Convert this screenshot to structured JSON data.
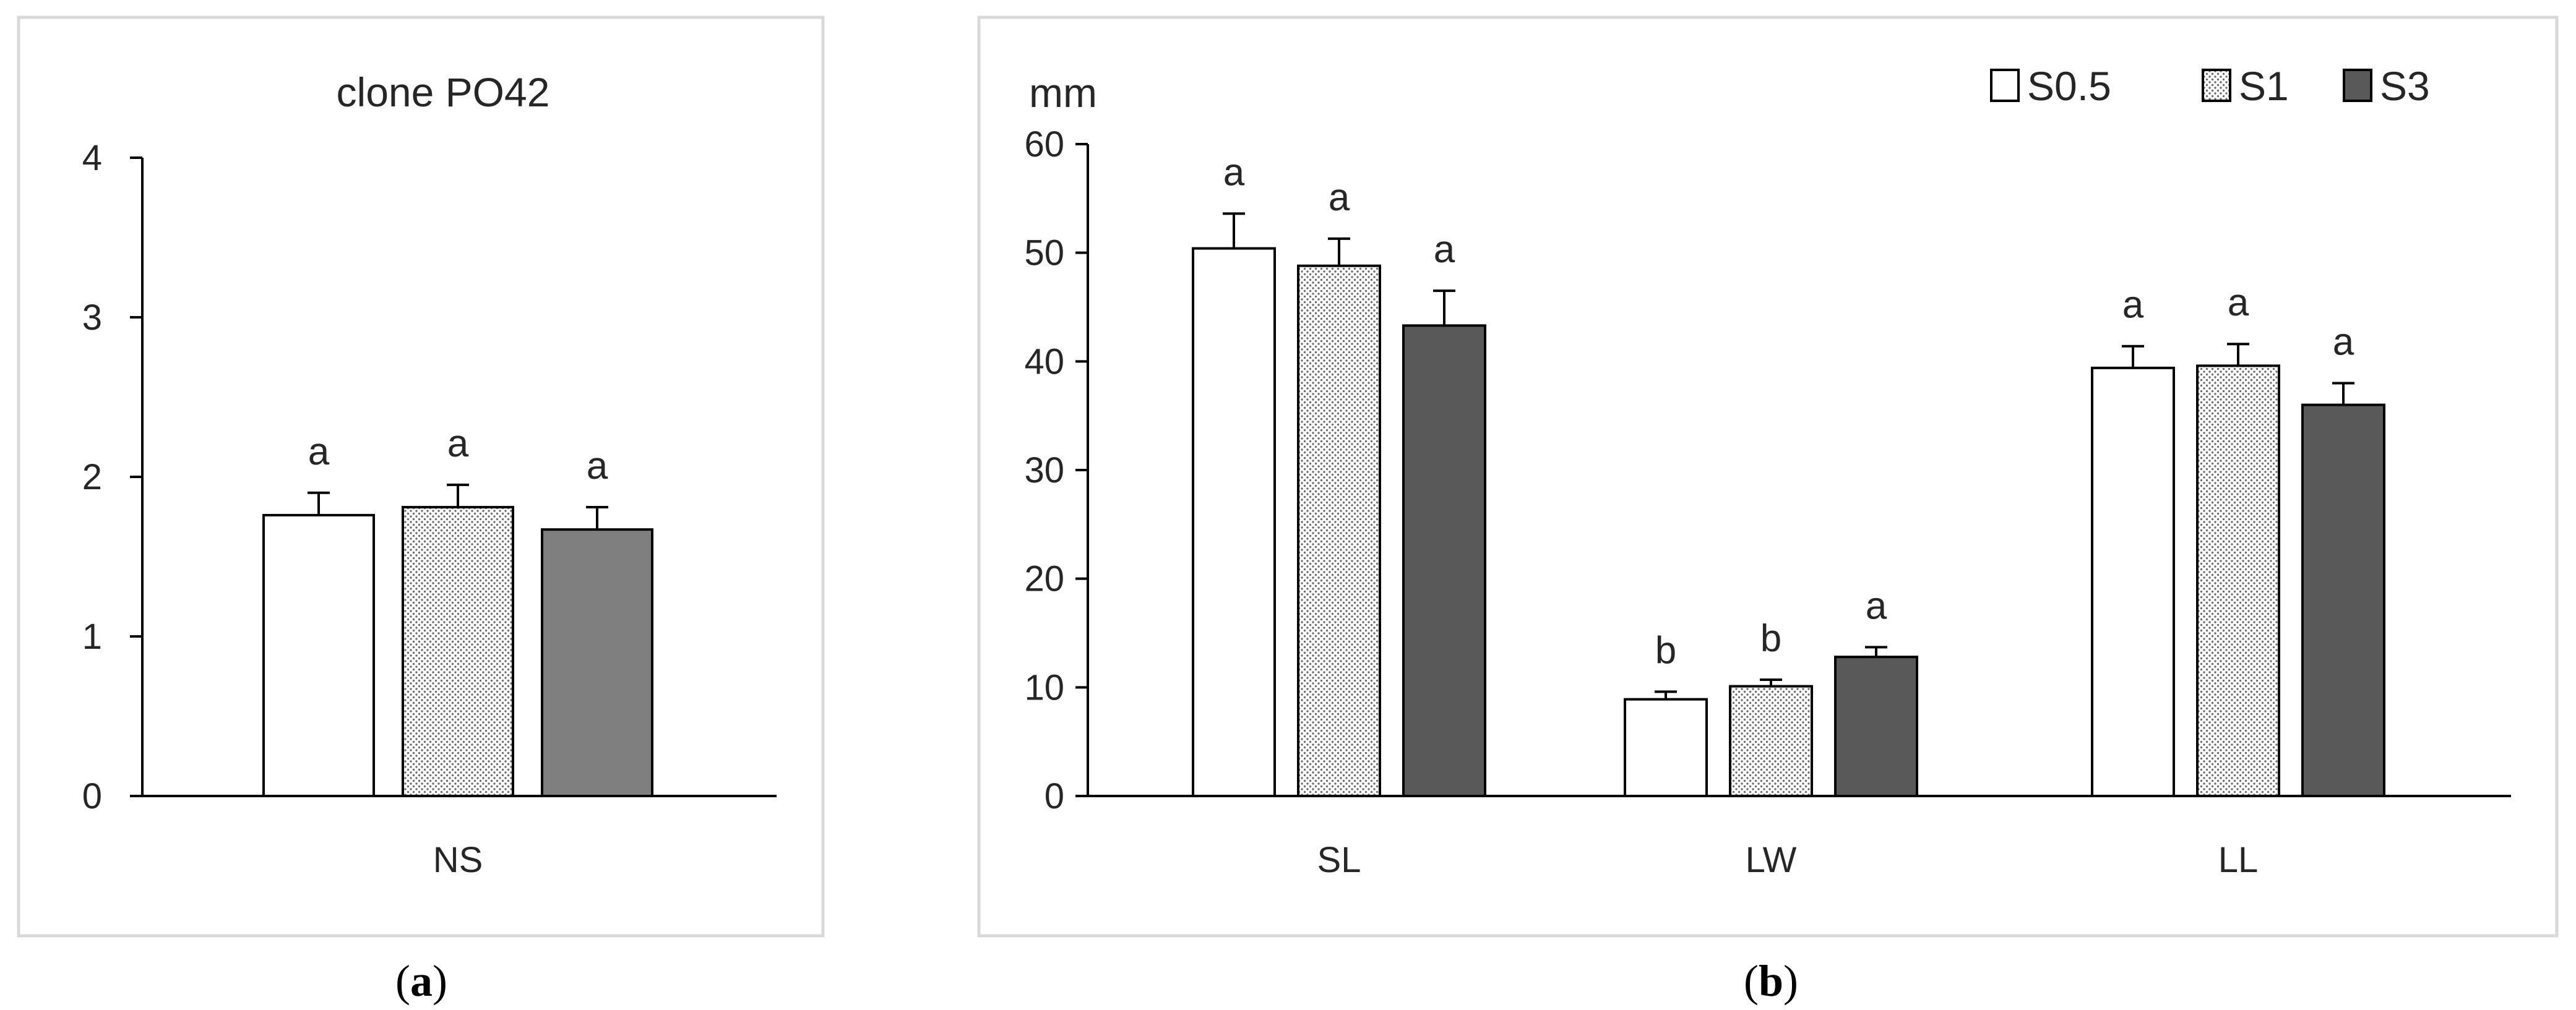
{
  "chart_data": [
    {
      "type": "bar",
      "panel_label": "a",
      "title": "clone PO42",
      "xlabel": "",
      "ylabel": "",
      "ylim": [
        0,
        4
      ],
      "yticks": [
        "0",
        "1",
        "2",
        "3",
        "4"
      ],
      "categories": [
        "NS"
      ],
      "series": [
        {
          "name": "S0.5",
          "values": [
            1.76
          ],
          "errors": [
            0.14
          ],
          "letters": [
            "a"
          ],
          "fill": "#ffffff"
        },
        {
          "name": "S1",
          "values": [
            1.81
          ],
          "errors": [
            0.14
          ],
          "letters": [
            "a"
          ],
          "fill": "dots"
        },
        {
          "name": "S3",
          "values": [
            1.67
          ],
          "errors": [
            0.14
          ],
          "letters": [
            "a"
          ],
          "fill": "#7f7f7f"
        }
      ]
    },
    {
      "type": "bar",
      "panel_label": "b",
      "title": "",
      "unit_label": "mm",
      "xlabel": "",
      "ylabel": "mm",
      "ylim": [
        0,
        60
      ],
      "yticks": [
        "0",
        "10",
        "20",
        "30",
        "40",
        "50",
        "60"
      ],
      "categories": [
        "SL",
        "LW",
        "LL"
      ],
      "legend_position": "top-right",
      "series": [
        {
          "name": "S0.5",
          "values": [
            50.4,
            8.9,
            39.4
          ],
          "errors": [
            3.2,
            0.7,
            2.0
          ],
          "letters": [
            "a",
            "b",
            "a"
          ],
          "fill": "#ffffff"
        },
        {
          "name": "S1",
          "values": [
            48.8,
            10.1,
            39.6
          ],
          "errors": [
            2.5,
            0.6,
            2.0
          ],
          "letters": [
            "a",
            "b",
            "a"
          ],
          "fill": "dots"
        },
        {
          "name": "S3",
          "values": [
            43.3,
            12.8,
            36.0
          ],
          "errors": [
            3.2,
            0.9,
            2.0
          ],
          "letters": [
            "a",
            "a",
            "a"
          ],
          "fill": "#595959"
        }
      ]
    }
  ]
}
